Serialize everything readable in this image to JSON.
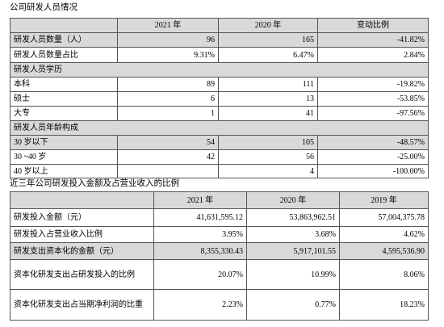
{
  "title1": "公司研发人员情况",
  "table1": {
    "header": [
      "2021 年",
      "2020 年",
      "变动比例"
    ],
    "rows": [
      [
        "研发人员数量（人）",
        "96",
        "165",
        "-41.82%"
      ],
      [
        "研发人员数量占比",
        "9.31%",
        "6.47%",
        "2.84%"
      ],
      [
        "研发人员学历"
      ],
      [
        "本科",
        "89",
        "111",
        "-19.82%"
      ],
      [
        "硕士",
        "6",
        "13",
        "-53.85%"
      ],
      [
        "大专",
        "1",
        "41",
        "-97.56%"
      ],
      [
        "研发人员年龄构成"
      ],
      [
        "30 岁以下",
        "54",
        "105",
        "-48.57%"
      ],
      [
        "30 ~40 岁",
        "42",
        "56",
        "-25.00%"
      ],
      [
        "40 岁以上",
        null,
        "4",
        "-100.00%"
      ]
    ]
  },
  "title2": "近三年公司研发投入金额及占营业收入的比例",
  "table2": {
    "header": [
      "2021 年",
      "2020 年",
      "2019 年"
    ],
    "rows": [
      [
        "研发投入金额（元）",
        "41,631,595.12",
        "53,863,962.51",
        "57,004,375.78"
      ],
      [
        "研发投入占营业收入比例",
        "3.95%",
        "3.68%",
        "4.62%"
      ],
      [
        "研发支出资本化的金额（元）",
        "8,355,330.43",
        "5,917,101.55",
        "4,595,536.90"
      ],
      [
        "资本化研发支出占研发投入的比例",
        "20.07%",
        "10.99%",
        "8.06%"
      ],
      [
        "资本化研发支出占当期净利润的比重",
        "2.23%",
        "0.77%",
        "18.23%"
      ]
    ]
  }
}
